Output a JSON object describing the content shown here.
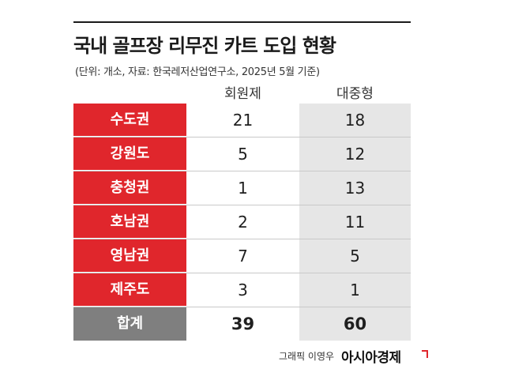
{
  "title": "국내 골프장 리무진 카트 도입 현황",
  "subtitle": "(단위: 개소, 자료: 한국레저산업연구소, 2025년 5월 기준)",
  "credit": "그래픽 이영우",
  "brand": "아시아경제",
  "colors": {
    "label_bg": "#e0262c",
    "total_bg": "#7f7f7f",
    "public_col_bg": "#e6e6e6"
  },
  "chart_data": {
    "type": "table",
    "title": "국내 골프장 리무진 카트 도입 현황",
    "subtitle": "(단위: 개소, 자료: 한국레저산업연구소, 2025년 5월 기준)",
    "columns": [
      "회원제",
      "대중형"
    ],
    "rows": [
      {
        "region": "수도권",
        "members": 21,
        "public": 18
      },
      {
        "region": "강원도",
        "members": 5,
        "public": 12
      },
      {
        "region": "충청권",
        "members": 1,
        "public": 13
      },
      {
        "region": "호남권",
        "members": 2,
        "public": 11
      },
      {
        "region": "영남권",
        "members": 7,
        "public": 5
      },
      {
        "region": "제주도",
        "members": 3,
        "public": 1
      }
    ],
    "total": {
      "label": "합계",
      "members": 39,
      "public": 60
    }
  }
}
